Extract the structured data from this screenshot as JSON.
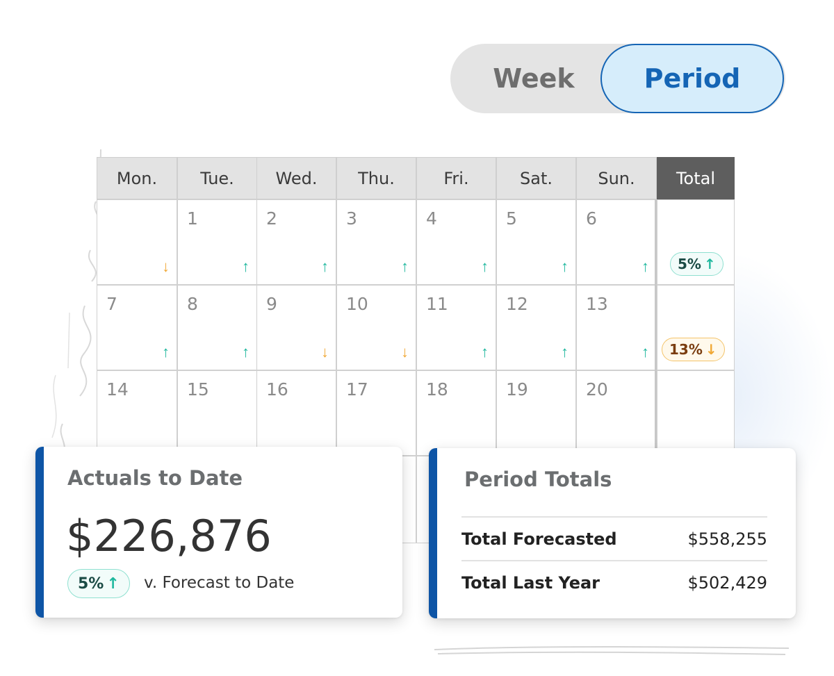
{
  "toggle": {
    "week_label": "Week",
    "period_label": "Period",
    "active": "Period"
  },
  "calendar": {
    "headers": [
      "Mon.",
      "Tue.",
      "Wed.",
      "Thu.",
      "Fri.",
      "Sat.",
      "Sun.",
      "Total"
    ],
    "weeks": [
      {
        "days": [
          {
            "num": "",
            "trend": "down"
          },
          {
            "num": "1",
            "trend": "up"
          },
          {
            "num": "2",
            "trend": "up"
          },
          {
            "num": "3",
            "trend": "up"
          },
          {
            "num": "4",
            "trend": "up"
          },
          {
            "num": "5",
            "trend": "up"
          },
          {
            "num": "6",
            "trend": "up"
          }
        ],
        "total": {
          "value": "5%",
          "trend": "up"
        }
      },
      {
        "days": [
          {
            "num": "7",
            "trend": "up"
          },
          {
            "num": "8",
            "trend": "up"
          },
          {
            "num": "9",
            "trend": "down"
          },
          {
            "num": "10",
            "trend": "down"
          },
          {
            "num": "11",
            "trend": "up"
          },
          {
            "num": "12",
            "trend": "up"
          },
          {
            "num": "13",
            "trend": "up"
          }
        ],
        "total": {
          "value": "13%",
          "trend": "down"
        }
      },
      {
        "days": [
          {
            "num": "14",
            "trend": ""
          },
          {
            "num": "15",
            "trend": ""
          },
          {
            "num": "16",
            "trend": ""
          },
          {
            "num": "17",
            "trend": ""
          },
          {
            "num": "18",
            "trend": ""
          },
          {
            "num": "19",
            "trend": ""
          },
          {
            "num": "20",
            "trend": ""
          }
        ],
        "total": {
          "value": "",
          "trend": ""
        }
      },
      {
        "days": [
          {
            "num": "",
            "trend": ""
          },
          {
            "num": "",
            "trend": ""
          },
          {
            "num": "",
            "trend": ""
          },
          {
            "num": "",
            "trend": ""
          },
          {
            "num": "",
            "trend": ""
          },
          {
            "num": "",
            "trend": ""
          },
          {
            "num": "",
            "trend": ""
          }
        ],
        "total": {
          "value": "",
          "trend": ""
        }
      }
    ]
  },
  "actuals": {
    "title": "Actuals to Date",
    "amount": "$226,876",
    "change": "5%",
    "change_trend": "up",
    "comparison": "v. Forecast to Date"
  },
  "totals": {
    "title": "Period Totals",
    "rows": [
      {
        "label": "Total Forecasted",
        "value": "$558,255"
      },
      {
        "label": "Total Last Year",
        "value": "$502,429"
      }
    ]
  },
  "colors": {
    "accent": "#0e55a6",
    "up": "#1fb89e",
    "down": "#f0a733",
    "toggle_active": "#1565b5"
  },
  "icons": {
    "up": "arrow-up-icon",
    "down": "arrow-down-icon"
  }
}
